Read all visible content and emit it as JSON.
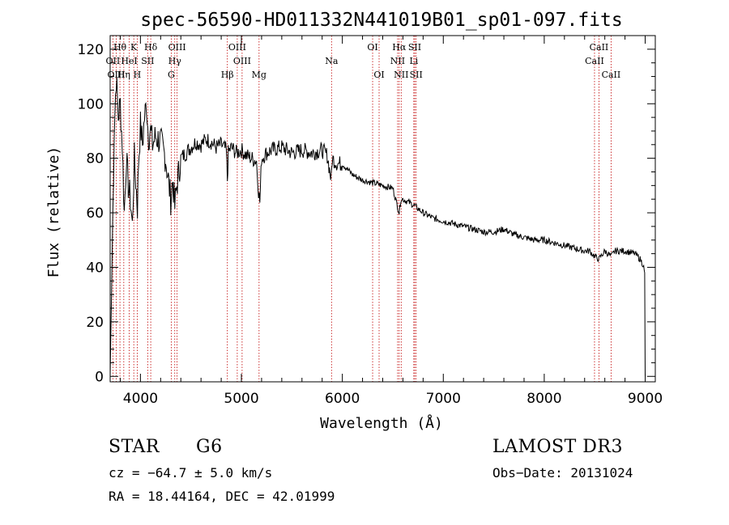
{
  "chart_data": {
    "type": "line",
    "title": "spec-56590-HD011332N441019B01_sp01-097.fits",
    "xlabel": "Wavelength (Å)",
    "ylabel": "Flux (relative)",
    "xlim": [
      3700,
      9100
    ],
    "ylim": [
      -2,
      125
    ],
    "x_ticks": [
      4000,
      5000,
      6000,
      7000,
      8000,
      9000
    ],
    "y_ticks": [
      0,
      20,
      40,
      60,
      80,
      100,
      120
    ],
    "grid": false,
    "series": [
      {
        "name": "flux",
        "x": [
          3700,
          3720,
          3740,
          3760,
          3780,
          3800,
          3820,
          3840,
          3860,
          3880,
          3900,
          3920,
          3940,
          3960,
          3970,
          3980,
          4000,
          4020,
          4040,
          4060,
          4080,
          4100,
          4120,
          4150,
          4200,
          4250,
          4300,
          4320,
          4340,
          4360,
          4400,
          4450,
          4500,
          4550,
          4600,
          4650,
          4700,
          4750,
          4800,
          4850,
          4861,
          4870,
          4900,
          4950,
          5000,
          5050,
          5100,
          5150,
          5170,
          5183,
          5200,
          5250,
          5300,
          5400,
          5500,
          5600,
          5700,
          5800,
          5850,
          5890,
          5900,
          5950,
          6000,
          6050,
          6100,
          6200,
          6300,
          6400,
          6500,
          6563,
          6580,
          6600,
          6700,
          6800,
          6900,
          7000,
          7100,
          7200,
          7300,
          7400,
          7500,
          7600,
          7700,
          7800,
          7900,
          8000,
          8100,
          8200,
          8300,
          8400,
          8450,
          8498,
          8542,
          8600,
          8662,
          8700,
          8800,
          8900,
          8950,
          8980,
          8995,
          9000
        ],
        "values": [
          0,
          45,
          90,
          110,
          95,
          100,
          85,
          60,
          80,
          70,
          65,
          55,
          80,
          68,
          62,
          78,
          92,
          85,
          95,
          100,
          88,
          90,
          85,
          88,
          86,
          80,
          65,
          72,
          62,
          70,
          80,
          82,
          84,
          86,
          85,
          87,
          86,
          84,
          85,
          83,
          72,
          82,
          84,
          82,
          83,
          81,
          80,
          79,
          68,
          64,
          80,
          82,
          83,
          84,
          82,
          83,
          82,
          83,
          81,
          72,
          80,
          78,
          78,
          76,
          74,
          72,
          71,
          70,
          69,
          60,
          65,
          65,
          63,
          60,
          58,
          57,
          56,
          55,
          54,
          53,
          53,
          54,
          52,
          51,
          50,
          50,
          49,
          48,
          47,
          46,
          46,
          44,
          43,
          46,
          44,
          46,
          46,
          45,
          43,
          41,
          38,
          0
        ]
      }
    ],
    "line_labels": [
      {
        "name": "Hθ",
        "x": 3797,
        "row": 1
      },
      {
        "name": "K",
        "x": 3934,
        "row": 1
      },
      {
        "name": "Hδ",
        "x": 4102,
        "row": 1
      },
      {
        "name": "OIII",
        "x": 4363,
        "row": 1
      },
      {
        "name": "OIII",
        "x": 4959,
        "row": 1
      },
      {
        "name": "OI",
        "x": 6300,
        "row": 1
      },
      {
        "name": "Hα",
        "x": 6563,
        "row": 1
      },
      {
        "name": "SII",
        "x": 6717,
        "row": 1
      },
      {
        "name": "CaII",
        "x": 8542,
        "row": 1
      },
      {
        "name": "OII",
        "x": 3727,
        "row": 2
      },
      {
        "name": "HeI",
        "x": 3889,
        "row": 2
      },
      {
        "name": "SII",
        "x": 4072,
        "row": 2
      },
      {
        "name": "Hγ",
        "x": 4340,
        "row": 2
      },
      {
        "name": "OIII",
        "x": 5007,
        "row": 2
      },
      {
        "name": "Na",
        "x": 5893,
        "row": 2
      },
      {
        "name": "NII",
        "x": 6548,
        "row": 2
      },
      {
        "name": "Li",
        "x": 6708,
        "row": 2
      },
      {
        "name": "CaII",
        "x": 8498,
        "row": 2
      },
      {
        "name": "OIII",
        "x": 3760,
        "row": 3
      },
      {
        "name": "Hη",
        "x": 3835,
        "row": 3
      },
      {
        "name": "H",
        "x": 3968,
        "row": 3
      },
      {
        "name": "G",
        "x": 4305,
        "row": 3
      },
      {
        "name": "Hβ",
        "x": 4861,
        "row": 3
      },
      {
        "name": "Mg",
        "x": 5175,
        "row": 3
      },
      {
        "name": "OI",
        "x": 6364,
        "row": 3
      },
      {
        "name": "NII",
        "x": 6583,
        "row": 3
      },
      {
        "name": "SII",
        "x": 6731,
        "row": 3
      },
      {
        "name": "CaII",
        "x": 8662,
        "row": 3
      }
    ]
  },
  "footer": {
    "object_class": "STAR",
    "subclass": "G6",
    "redshift": "cz = −64.7 ± 5.0 km/s",
    "coords": "RA =  18.44164, DEC =  42.01999",
    "survey": "LAMOST DR3",
    "obs_date": "Obs−Date: 20131024"
  }
}
